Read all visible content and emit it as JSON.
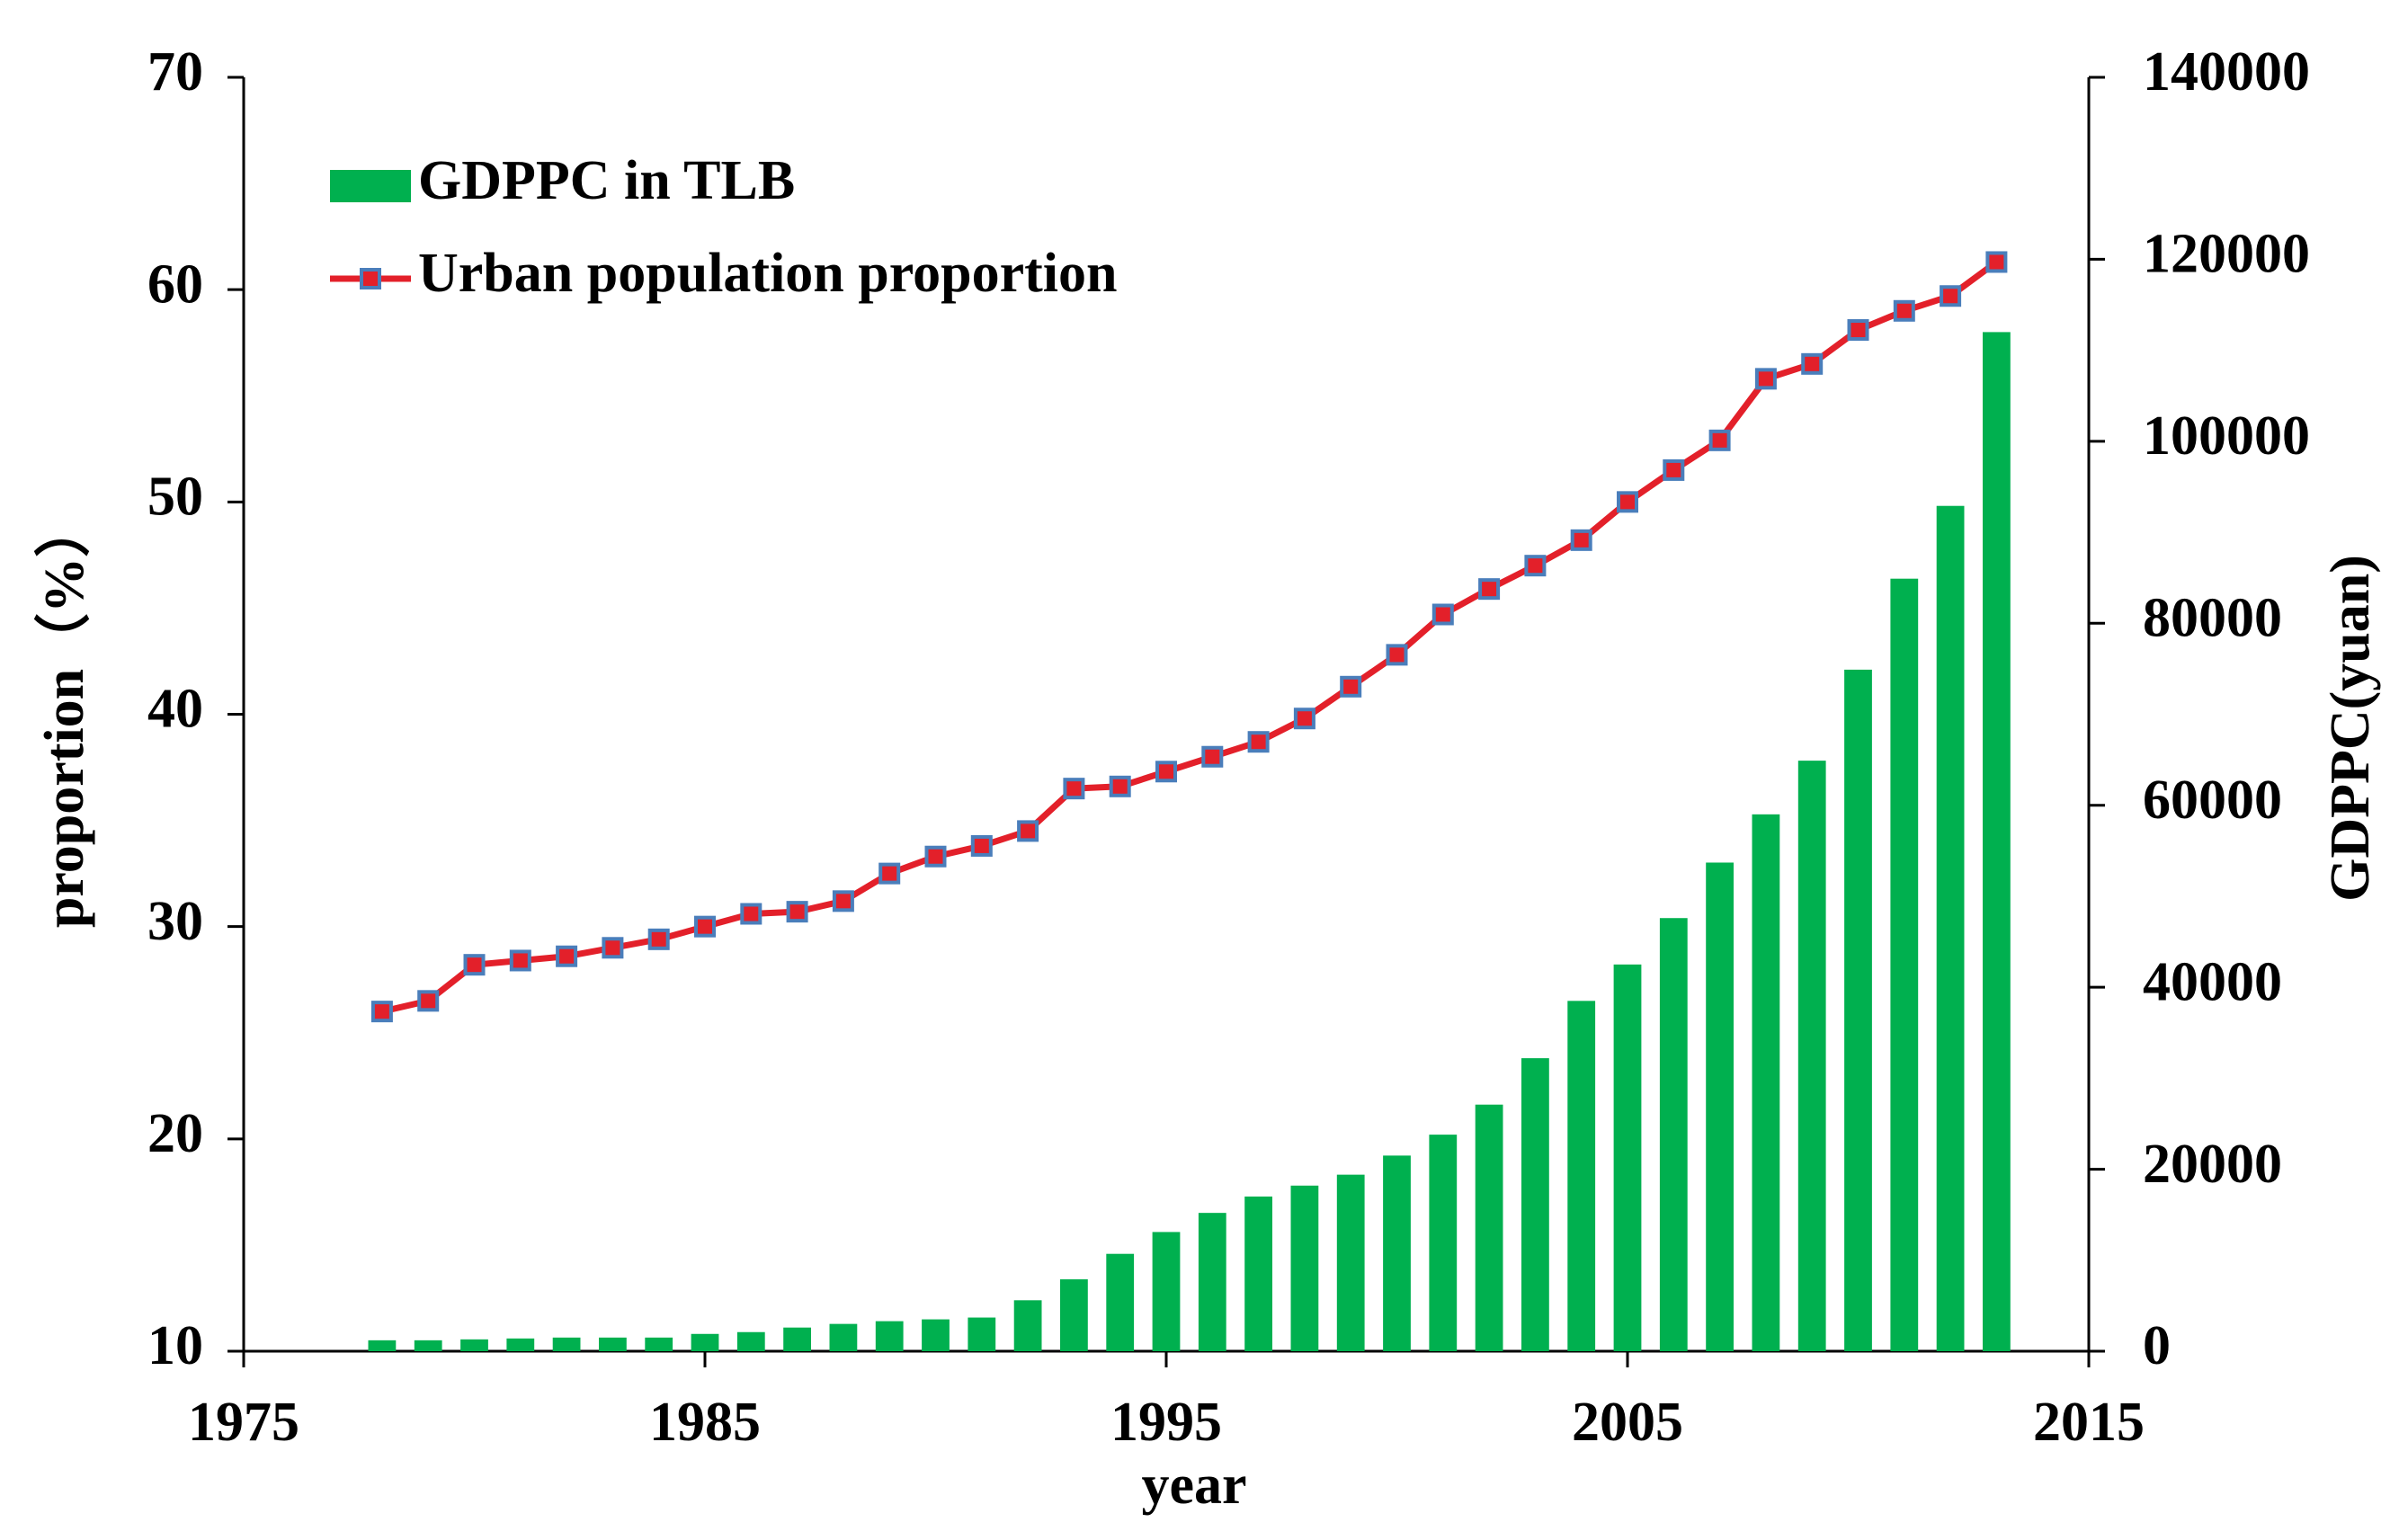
{
  "chart_data": {
    "type": "bar-line",
    "x_label": "year",
    "y_label": "proportion（%）",
    "y2_label": "GDPPC(yuan)",
    "x": [
      1978,
      1979,
      1980,
      1981,
      1982,
      1983,
      1984,
      1985,
      1986,
      1987,
      1988,
      1989,
      1990,
      1991,
      1992,
      1993,
      1994,
      1995,
      1996,
      1997,
      1998,
      1999,
      2000,
      2001,
      2002,
      2003,
      2004,
      2005,
      2006,
      2007,
      2008,
      2009,
      2010,
      2011,
      2012,
      2013
    ],
    "series": [
      {
        "name": "GDPPC in TLB",
        "type": "bar",
        "axis": "y2",
        "color": "#00b04f",
        "values": [
          1200,
          1200,
          1300,
          1400,
          1500,
          1500,
          1500,
          1900,
          2100,
          2600,
          3000,
          3300,
          3500,
          3700,
          5600,
          7900,
          10700,
          13100,
          15200,
          17000,
          18200,
          19400,
          21500,
          23800,
          27100,
          32200,
          38500,
          42500,
          47600,
          53700,
          59000,
          64900,
          74900,
          84900,
          92900,
          112000
        ]
      },
      {
        "name": "Urban population proportion",
        "type": "line",
        "color": "#e3202a",
        "marker_color": "#4a7ebb",
        "values": [
          26.0,
          26.5,
          28.2,
          28.4,
          28.6,
          29.0,
          29.4,
          30.0,
          30.6,
          30.7,
          31.2,
          32.5,
          33.3,
          33.8,
          34.5,
          36.5,
          36.6,
          37.3,
          38.0,
          38.7,
          39.8,
          41.3,
          42.8,
          44.7,
          45.9,
          47.0,
          48.2,
          50.0,
          51.5,
          52.9,
          55.8,
          56.5,
          58.1,
          59.0,
          59.7,
          61.3
        ]
      }
    ],
    "xlim": [
      1975,
      2015
    ],
    "xticks": [
      1975,
      1985,
      1995,
      2005,
      2015
    ],
    "ylim": [
      10,
      70
    ],
    "yticks": [
      10,
      20,
      30,
      40,
      50,
      60,
      70
    ],
    "y2lim": [
      0,
      140000
    ],
    "y2ticks": [
      0,
      20000,
      40000,
      60000,
      80000,
      100000,
      120000,
      140000
    ],
    "grid": false,
    "legend": "upper left"
  }
}
